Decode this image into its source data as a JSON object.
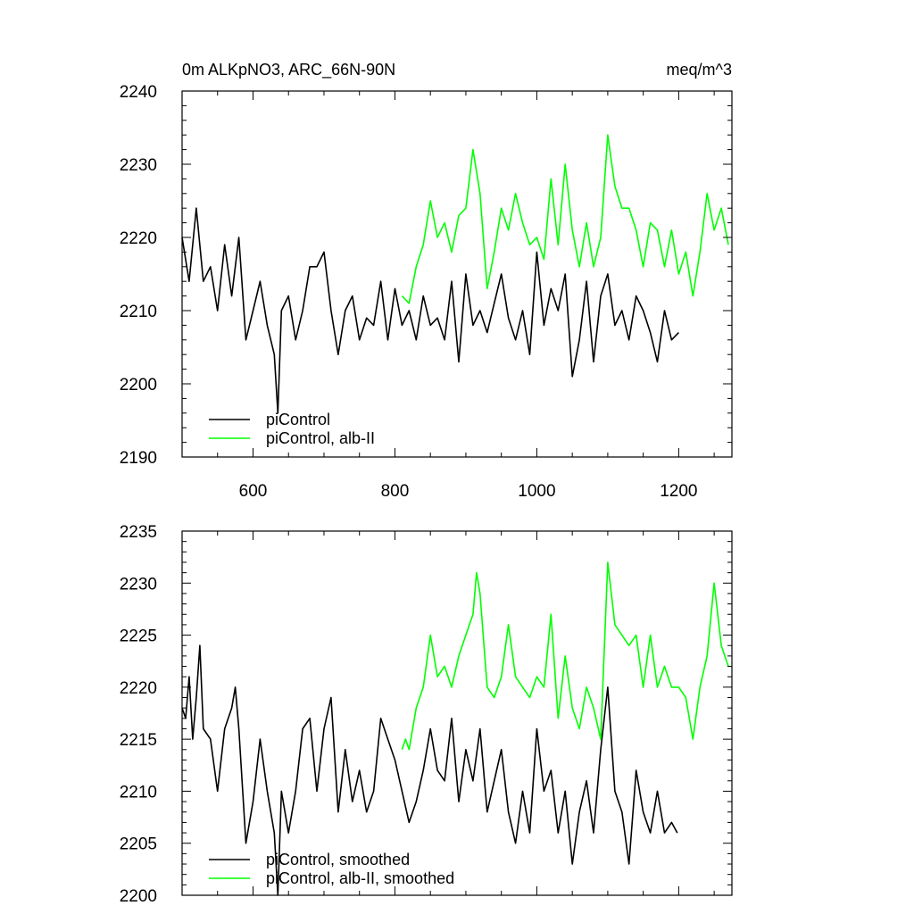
{
  "header": {
    "title": "0m ALKpNO3, ARC_66N-90N",
    "units": "meq/m^3"
  },
  "colors": {
    "picontrol": "#000000",
    "alb": "#00ff00",
    "axis": "#000000"
  },
  "chart_data": [
    {
      "type": "line",
      "title": "0m ALKpNO3, ARC_66N-90N",
      "units": "meq/m^3",
      "xlim": [
        500,
        1275
      ],
      "ylim": [
        2190,
        2240
      ],
      "xticks": [
        600,
        800,
        1000,
        1200
      ],
      "yticks": [
        2190,
        2200,
        2210,
        2220,
        2230,
        2240
      ],
      "show_x_tick_labels": true,
      "grid": false,
      "legend_position": "bottom-left",
      "series": [
        {
          "name": "piControl",
          "color": "#000000",
          "x": [
            500,
            510,
            520,
            530,
            540,
            550,
            560,
            570,
            580,
            590,
            600,
            610,
            620,
            630,
            635,
            640,
            650,
            660,
            670,
            680,
            690,
            700,
            710,
            720,
            730,
            740,
            750,
            760,
            770,
            780,
            790,
            800,
            810,
            820,
            830,
            840,
            850,
            860,
            870,
            880,
            890,
            900,
            910,
            920,
            930,
            940,
            950,
            960,
            970,
            980,
            990,
            1000,
            1010,
            1020,
            1030,
            1040,
            1050,
            1060,
            1070,
            1080,
            1090,
            1100,
            1110,
            1120,
            1130,
            1140,
            1150,
            1160,
            1170,
            1180,
            1190,
            1200
          ],
          "y": [
            2220,
            2214,
            2224,
            2214,
            2216,
            2210,
            2219,
            2212,
            2220,
            2206,
            2210,
            2214,
            2208,
            2204,
            2196,
            2210,
            2212,
            2206,
            2210,
            2216,
            2216,
            2218,
            2210,
            2204,
            2210,
            2212,
            2206,
            2209,
            2208,
            2214,
            2206,
            2213,
            2208,
            2210,
            2206,
            2212,
            2208,
            2209,
            2206,
            2214,
            2203,
            2215,
            2208,
            2210,
            2207,
            2211,
            2215,
            2209,
            2206,
            2210,
            2204,
            2218,
            2208,
            2213,
            2210,
            2215,
            2201,
            2206,
            2214,
            2203,
            2212,
            2215,
            2208,
            2210,
            2206,
            2212,
            2210,
            2207,
            2203,
            2210,
            2206,
            2207
          ]
        },
        {
          "name": "piControl, alb-II",
          "color": "#00ff00",
          "x": [
            810,
            820,
            830,
            840,
            850,
            860,
            870,
            880,
            890,
            900,
            910,
            920,
            930,
            940,
            950,
            960,
            970,
            980,
            990,
            1000,
            1010,
            1020,
            1030,
            1040,
            1050,
            1060,
            1070,
            1080,
            1090,
            1100,
            1110,
            1120,
            1130,
            1140,
            1150,
            1160,
            1170,
            1180,
            1190,
            1200,
            1210,
            1220,
            1230,
            1240,
            1250,
            1260,
            1270
          ],
          "y": [
            2212,
            2211,
            2216,
            2219,
            2225,
            2220,
            2222,
            2218,
            2223,
            2224,
            2232,
            2226,
            2213,
            2218,
            2224,
            2221,
            2226,
            2222,
            2219,
            2220,
            2217,
            2228,
            2219,
            2230,
            2221,
            2216,
            2222,
            2216,
            2220,
            2234,
            2227,
            2224,
            2224,
            2221,
            2216,
            2222,
            2221,
            2216,
            2221,
            2215,
            2218,
            2212,
            2218,
            2226,
            2221,
            2224,
            2219
          ]
        }
      ]
    },
    {
      "type": "line",
      "xlim": [
        500,
        1275
      ],
      "ylim": [
        2200,
        2235
      ],
      "xticks": [
        600,
        800,
        1000,
        1200
      ],
      "yticks": [
        2200,
        2205,
        2210,
        2215,
        2220,
        2225,
        2230,
        2235
      ],
      "show_x_tick_labels": false,
      "grid": false,
      "legend_position": "bottom-left",
      "series": [
        {
          "name": "piControl, smoothed",
          "color": "#000000",
          "x": [
            500,
            505,
            510,
            515,
            520,
            525,
            530,
            540,
            550,
            560,
            570,
            575,
            580,
            590,
            600,
            610,
            620,
            630,
            635,
            640,
            650,
            660,
            670,
            680,
            690,
            700,
            710,
            720,
            730,
            740,
            750,
            760,
            770,
            780,
            790,
            800,
            810,
            820,
            830,
            840,
            850,
            860,
            870,
            880,
            890,
            900,
            910,
            920,
            930,
            940,
            950,
            960,
            970,
            980,
            990,
            1000,
            1010,
            1020,
            1030,
            1040,
            1050,
            1060,
            1070,
            1080,
            1090,
            1100,
            1110,
            1120,
            1130,
            1140,
            1150,
            1160,
            1170,
            1180,
            1190,
            1198
          ],
          "y": [
            2218,
            2217,
            2221,
            2215,
            2219,
            2224,
            2216,
            2215,
            2210,
            2216,
            2218,
            2220,
            2216,
            2205,
            2209,
            2215,
            2210,
            2206,
            2200,
            2210,
            2206,
            2210,
            2216,
            2217,
            2210,
            2216,
            2219,
            2208,
            2214,
            2209,
            2212,
            2208,
            2210,
            2217,
            2215,
            2213,
            2210,
            2207,
            2209,
            2212,
            2216,
            2212,
            2211,
            2217,
            2209,
            2214,
            2211,
            2216,
            2208,
            2211,
            2214,
            2208,
            2205,
            2210,
            2206,
            2216,
            2210,
            2212,
            2206,
            2210,
            2203,
            2208,
            2211,
            2206,
            2214,
            2220,
            2210,
            2208,
            2203,
            2212,
            2208,
            2206,
            2210,
            2206,
            2207,
            2206
          ]
        },
        {
          "name": "piControl, alb-II, smoothed",
          "color": "#00ff00",
          "x": [
            810,
            815,
            820,
            830,
            840,
            850,
            860,
            870,
            880,
            890,
            900,
            910,
            915,
            920,
            930,
            940,
            950,
            960,
            970,
            980,
            990,
            1000,
            1010,
            1020,
            1030,
            1040,
            1050,
            1060,
            1070,
            1080,
            1090,
            1100,
            1110,
            1120,
            1130,
            1140,
            1150,
            1160,
            1170,
            1180,
            1190,
            1200,
            1210,
            1220,
            1230,
            1240,
            1250,
            1260,
            1270
          ],
          "y": [
            2214,
            2215,
            2214,
            2218,
            2220,
            2225,
            2221,
            2222,
            2220,
            2223,
            2225,
            2227,
            2231,
            2229,
            2220,
            2219,
            2221,
            2226,
            2221,
            2220,
            2219,
            2221,
            2220,
            2227,
            2217,
            2223,
            2218,
            2216,
            2220,
            2218,
            2215,
            2232,
            2226,
            2225,
            2224,
            2225,
            2220,
            2225,
            2220,
            2222,
            2220,
            2220,
            2219,
            2215,
            2220,
            2223,
            2230,
            2224,
            2222
          ]
        }
      ]
    }
  ]
}
